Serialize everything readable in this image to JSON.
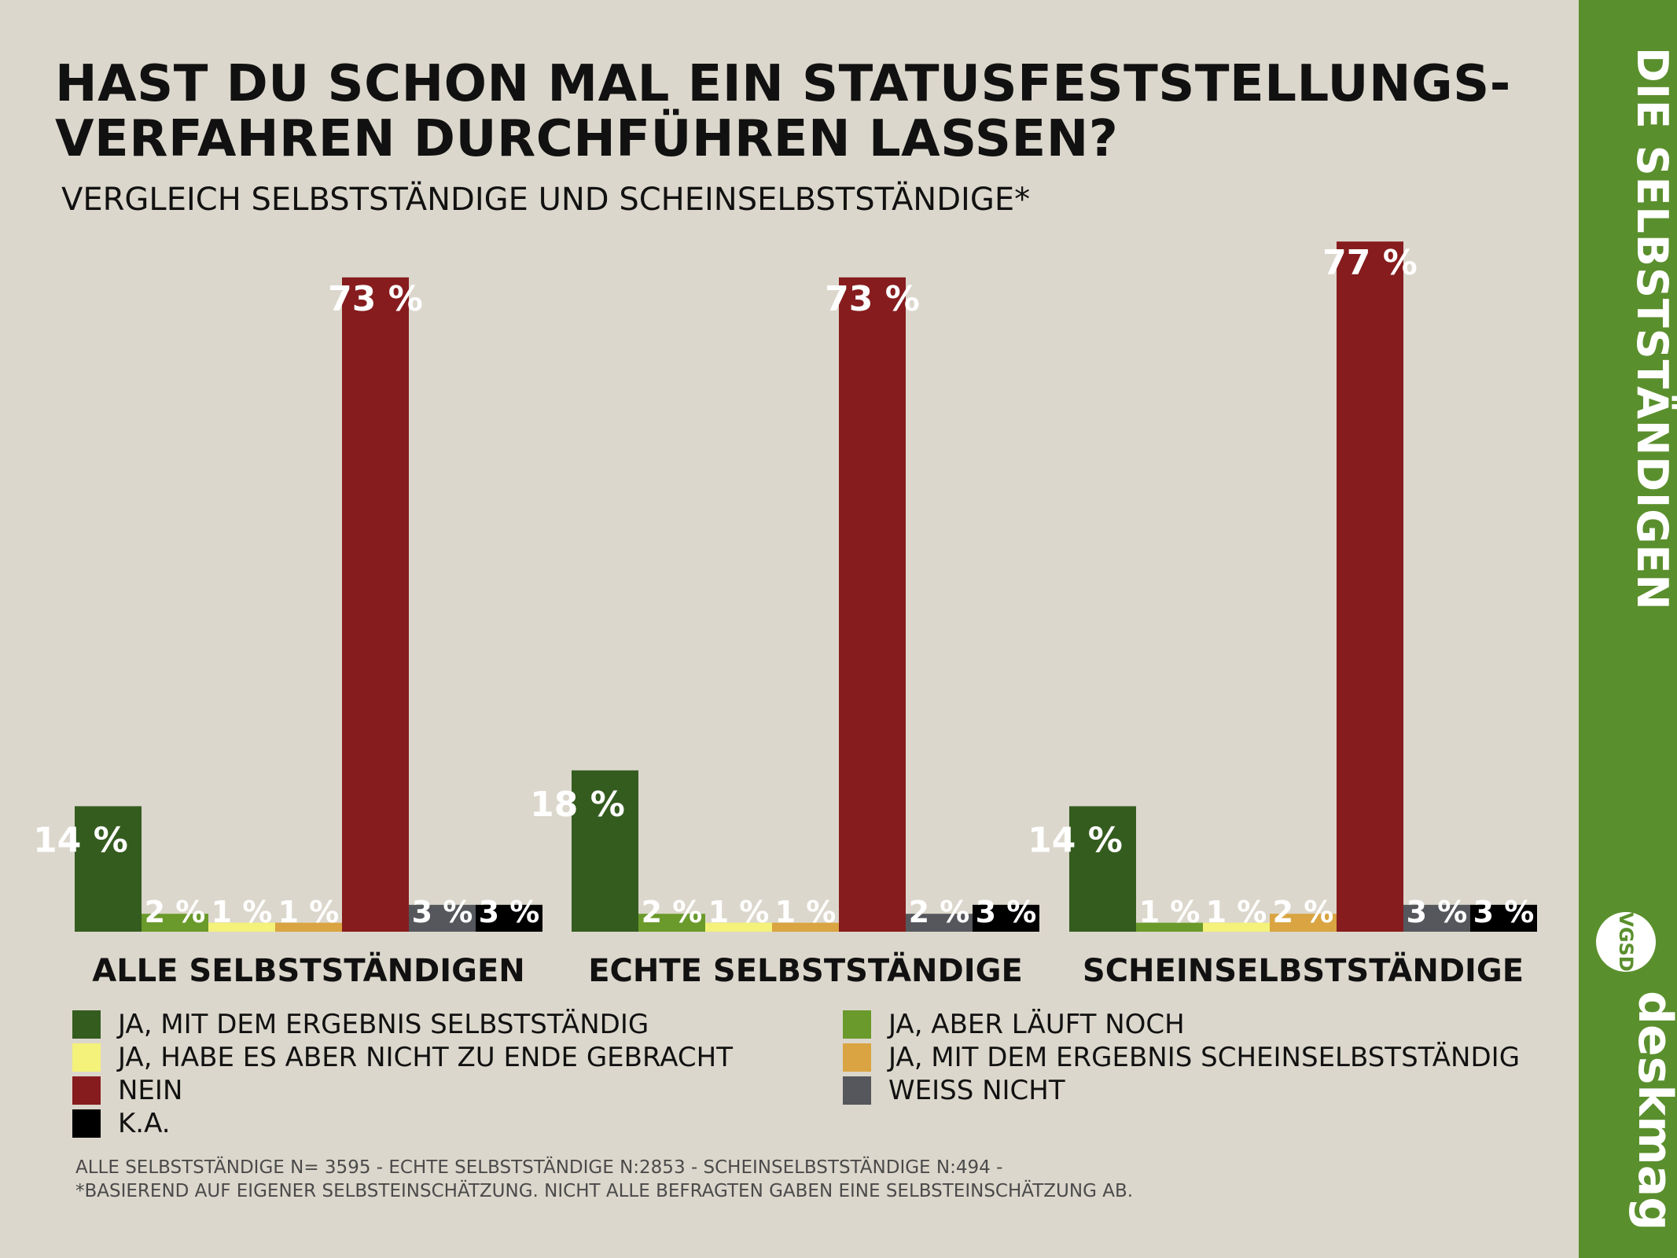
{
  "title": "HAST DU SCHON MAL EIN STATUSFESTSTELLUNGS-\nVERFAHREN DURCHFÜHREN LASSEN?",
  "subtitle": "VERGLEICH SELBSTSTÄNDIGE UND SCHEINSELBSTSTÄNDIGE*",
  "chart_data": {
    "type": "bar",
    "categories": [
      "ALLE SELBSTSTÄNDIGEN",
      "ECHTE SELBSTSTÄNDIGE",
      "SCHEINSELBSTSTÄNDIGE"
    ],
    "series": [
      {
        "name": "JA, MIT DEM ERGEBNIS SELBSTSTÄNDIG",
        "color": "#345c1f",
        "values": [
          14,
          18,
          14
        ]
      },
      {
        "name": "JA, ABER LÄUFT NOCH",
        "color": "#6a9a2b",
        "values": [
          2,
          2,
          1
        ]
      },
      {
        "name": "JA, HABE ES ABER NICHT ZU ENDE GEBRACHT",
        "color": "#f4f27a",
        "values": [
          1,
          1,
          1
        ]
      },
      {
        "name": "JA, MIT DEM ERGEBNIS SCHEINSELBSTSTÄNDIG",
        "color": "#d9a441",
        "values": [
          1,
          1,
          2
        ]
      },
      {
        "name": "NEIN",
        "color": "#861c1e",
        "values": [
          73,
          73,
          77
        ]
      },
      {
        "name": "WEISS NICHT",
        "color": "#55575c",
        "values": [
          3,
          2,
          3
        ]
      },
      {
        "name": "K.A.",
        "color": "#000000",
        "values": [
          3,
          3,
          3
        ]
      }
    ],
    "value_suffix": " %",
    "ylim": [
      0,
      80
    ],
    "legend_position": "bottom",
    "grid": false
  },
  "footnote": "ALLE SELBSTSTÄNDIGE N= 3595 - ECHTE SELBSTSTÄNDIGE N:2853 - SCHEINSELBSTSTÄNDIGE N:494 -\n*BASIEREND AUF EIGENER SELBSTEINSCHÄTZUNG. NICHT ALLE BEFRAGTEN GABEN EINE SELBSTEINSCHÄTZUNG AB.",
  "sidebar": {
    "title": "DIE SELBSTSTÄNDIGEN",
    "logo_badge": "VGSD",
    "logo_word": "deskmag",
    "color": "#5a8f2d"
  }
}
